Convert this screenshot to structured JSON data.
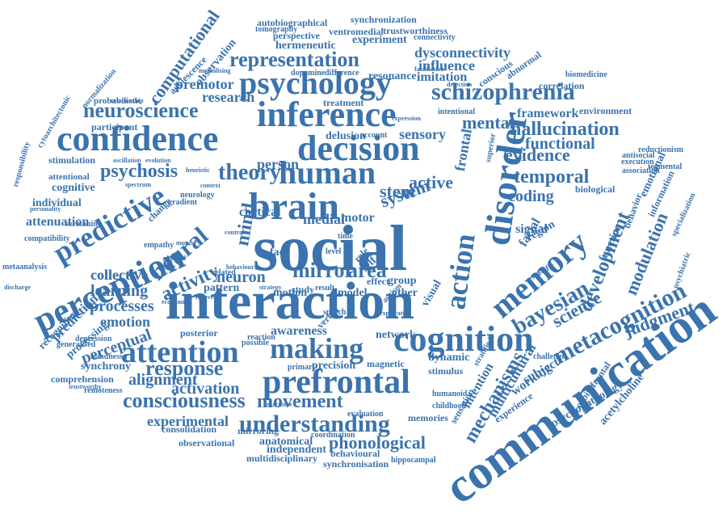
{
  "cloud": {
    "color": "#3a73ad",
    "words": [
      "social",
      "interaction",
      "communication",
      "brain",
      "cognition",
      "prefrontal",
      "perception",
      "confidence",
      "inference",
      "psychology",
      "decision",
      "human",
      "disorder",
      "schizophrenia",
      "attention",
      "making",
      "understanding",
      "consciousness",
      "memory",
      "representation",
      "neuroscience",
      "predictive",
      "neural",
      "theory",
      "mirror",
      "area",
      "neuron",
      "metacognition",
      "bayesian",
      "action",
      "development",
      "movement",
      "response",
      "hallucination",
      "psychosis",
      "modulation",
      "temporal",
      "evidence",
      "mental",
      "functional",
      "sensory",
      "coding",
      "activity",
      "science",
      "judgment",
      "alignment",
      "phonological",
      "activation",
      "experimental",
      "computational",
      "emotion",
      "perceptual",
      "processes",
      "learning",
      "collective",
      "dysconnectivity",
      "influence",
      "imitation",
      "resonance",
      "autobiographical",
      "synchronization",
      "trustworthiness",
      "ventromedial",
      "hermeneutic",
      "perspective",
      "experiment",
      "connectivity",
      "premotor",
      "research",
      "observation",
      "adolescence",
      "treatment",
      "delusion",
      "account",
      "intentional",
      "framework",
      "environment",
      "correlation",
      "conscious",
      "abnormal",
      "biomedicine",
      "participant",
      "probabilistic",
      "stimulation",
      "attentional",
      "cognitive",
      "individual",
      "attenuation",
      "recognition",
      "prediction",
      "processing",
      "posterior",
      "synchrony",
      "comprehension",
      "remoteness",
      "consolidation",
      "observational",
      "anatomical",
      "multidisciplinary",
      "independent",
      "behavioural",
      "synchronisation",
      "hippocampal",
      "mechanisms",
      "multicultural",
      "intention",
      "working",
      "subject",
      "experience",
      "sensation",
      "psychopathology",
      "orbitofrontal",
      "acetylcholine",
      "awareness",
      "network",
      "dynamic",
      "visual",
      "facial",
      "model",
      "autism",
      "signal",
      "region",
      "specific",
      "biological",
      "behavior",
      "function",
      "information",
      "emotional",
      "reductionism",
      "tegmental",
      "specialization",
      "psychiatric",
      "association",
      "execution",
      "antisocial",
      "stem",
      "system",
      "motor",
      "mind",
      "medial",
      "person",
      "active",
      "frontal",
      "superior",
      "cortical",
      "face",
      "group",
      "other",
      "effect",
      "time",
      "role",
      "self",
      "study",
      "result",
      "pattern",
      "motion",
      "speech",
      "verbal",
      "precision",
      "primary",
      "magnetic",
      "stimulus",
      "memories",
      "evaluation",
      "coordination",
      "humanoid",
      "childhood",
      "challenge",
      "stratified",
      "generalised",
      "depression",
      "blindness",
      "serotonin",
      "empathy",
      "compatibility",
      "metaanalysis",
      "responsibility",
      "cytoarchitectonic",
      "normalization",
      "relationship",
      "oscillation",
      "evolution",
      "heuristic",
      "spectrum",
      "dopamine",
      "difference",
      "tomography",
      "facilitation",
      "detection",
      "expression",
      "mentalising",
      "gradient",
      "change",
      "personality",
      "discharge",
      "trustworthy",
      "reaction",
      "possible",
      "executive",
      "mirroring",
      "related",
      "collective",
      "neurology",
      "strategy",
      "exploration",
      "economic",
      "recovery",
      "behaviour",
      "physical",
      "mutual",
      "context",
      "control",
      "level"
    ]
  }
}
